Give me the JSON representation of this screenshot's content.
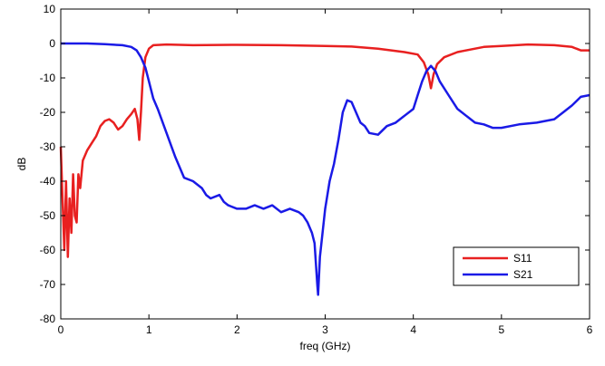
{
  "chart_data": {
    "type": "line",
    "title": "",
    "xlabel": "freq (GHz)",
    "ylabel": "dB",
    "xlim": [
      0,
      6
    ],
    "ylim": [
      -80,
      10
    ],
    "xticks": [
      0,
      1,
      2,
      3,
      4,
      5,
      6
    ],
    "yticks": [
      10,
      0,
      -10,
      -20,
      -30,
      -40,
      -50,
      -60,
      -70,
      -80
    ],
    "grid": false,
    "legend_position": "bottom-right",
    "series": [
      {
        "name": "S11",
        "color": "#e82020",
        "points": [
          [
            0,
            -30
          ],
          [
            0.02,
            -45
          ],
          [
            0.04,
            -60
          ],
          [
            0.06,
            -40
          ],
          [
            0.08,
            -62
          ],
          [
            0.1,
            -45
          ],
          [
            0.12,
            -55
          ],
          [
            0.14,
            -38
          ],
          [
            0.16,
            -50
          ],
          [
            0.18,
            -52
          ],
          [
            0.2,
            -38
          ],
          [
            0.22,
            -42
          ],
          [
            0.25,
            -34
          ],
          [
            0.3,
            -31
          ],
          [
            0.35,
            -29
          ],
          [
            0.4,
            -27
          ],
          [
            0.45,
            -24
          ],
          [
            0.5,
            -22.5
          ],
          [
            0.55,
            -22
          ],
          [
            0.6,
            -23
          ],
          [
            0.65,
            -25
          ],
          [
            0.7,
            -24
          ],
          [
            0.75,
            -22
          ],
          [
            0.8,
            -20.5
          ],
          [
            0.84,
            -19
          ],
          [
            0.87,
            -22
          ],
          [
            0.89,
            -28
          ],
          [
            0.91,
            -20
          ],
          [
            0.93,
            -10
          ],
          [
            0.96,
            -4
          ],
          [
            1.0,
            -1.5
          ],
          [
            1.05,
            -0.5
          ],
          [
            1.2,
            -0.3
          ],
          [
            1.5,
            -0.5
          ],
          [
            2.0,
            -0.4
          ],
          [
            2.5,
            -0.5
          ],
          [
            3.0,
            -0.7
          ],
          [
            3.3,
            -0.9
          ],
          [
            3.6,
            -1.5
          ],
          [
            3.9,
            -2.5
          ],
          [
            4.05,
            -3.2
          ],
          [
            4.12,
            -5.5
          ],
          [
            4.17,
            -9
          ],
          [
            4.2,
            -13
          ],
          [
            4.23,
            -9
          ],
          [
            4.27,
            -6
          ],
          [
            4.35,
            -4
          ],
          [
            4.5,
            -2.5
          ],
          [
            4.8,
            -1
          ],
          [
            5.0,
            -0.7
          ],
          [
            5.3,
            -0.3
          ],
          [
            5.6,
            -0.5
          ],
          [
            5.8,
            -1
          ],
          [
            5.9,
            -2
          ],
          [
            6.0,
            -2
          ]
        ]
      },
      {
        "name": "S21",
        "color": "#1a1ae6",
        "points": [
          [
            0,
            0
          ],
          [
            0.3,
            0
          ],
          [
            0.5,
            -0.2
          ],
          [
            0.7,
            -0.5
          ],
          [
            0.8,
            -1
          ],
          [
            0.86,
            -2
          ],
          [
            0.91,
            -4
          ],
          [
            0.96,
            -7
          ],
          [
            1.0,
            -11
          ],
          [
            1.05,
            -16
          ],
          [
            1.1,
            -19
          ],
          [
            1.2,
            -26
          ],
          [
            1.3,
            -33
          ],
          [
            1.4,
            -39
          ],
          [
            1.5,
            -40
          ],
          [
            1.6,
            -42
          ],
          [
            1.65,
            -44
          ],
          [
            1.7,
            -45
          ],
          [
            1.8,
            -44
          ],
          [
            1.85,
            -46
          ],
          [
            1.9,
            -47
          ],
          [
            2.0,
            -48
          ],
          [
            2.1,
            -48
          ],
          [
            2.2,
            -47
          ],
          [
            2.3,
            -48
          ],
          [
            2.4,
            -47
          ],
          [
            2.5,
            -49
          ],
          [
            2.6,
            -48
          ],
          [
            2.7,
            -49
          ],
          [
            2.75,
            -50
          ],
          [
            2.8,
            -52
          ],
          [
            2.85,
            -55
          ],
          [
            2.88,
            -58
          ],
          [
            2.91,
            -70
          ],
          [
            2.92,
            -73
          ],
          [
            2.94,
            -62
          ],
          [
            2.97,
            -55
          ],
          [
            3.0,
            -48
          ],
          [
            3.05,
            -40
          ],
          [
            3.1,
            -35
          ],
          [
            3.15,
            -28
          ],
          [
            3.2,
            -20
          ],
          [
            3.25,
            -16.5
          ],
          [
            3.3,
            -17
          ],
          [
            3.35,
            -20
          ],
          [
            3.4,
            -23
          ],
          [
            3.45,
            -24
          ],
          [
            3.5,
            -26
          ],
          [
            3.6,
            -26.5
          ],
          [
            3.7,
            -24
          ],
          [
            3.8,
            -23
          ],
          [
            3.9,
            -21
          ],
          [
            4.0,
            -19
          ],
          [
            4.05,
            -15
          ],
          [
            4.1,
            -11
          ],
          [
            4.15,
            -8
          ],
          [
            4.2,
            -6.5
          ],
          [
            4.25,
            -8
          ],
          [
            4.3,
            -11
          ],
          [
            4.4,
            -15
          ],
          [
            4.5,
            -19
          ],
          [
            4.6,
            -21
          ],
          [
            4.7,
            -23
          ],
          [
            4.8,
            -23.5
          ],
          [
            4.9,
            -24.5
          ],
          [
            5.0,
            -24.5
          ],
          [
            5.2,
            -23.5
          ],
          [
            5.4,
            -23
          ],
          [
            5.6,
            -22
          ],
          [
            5.7,
            -20
          ],
          [
            5.8,
            -18
          ],
          [
            5.9,
            -15.5
          ],
          [
            6.0,
            -15
          ]
        ]
      }
    ]
  }
}
